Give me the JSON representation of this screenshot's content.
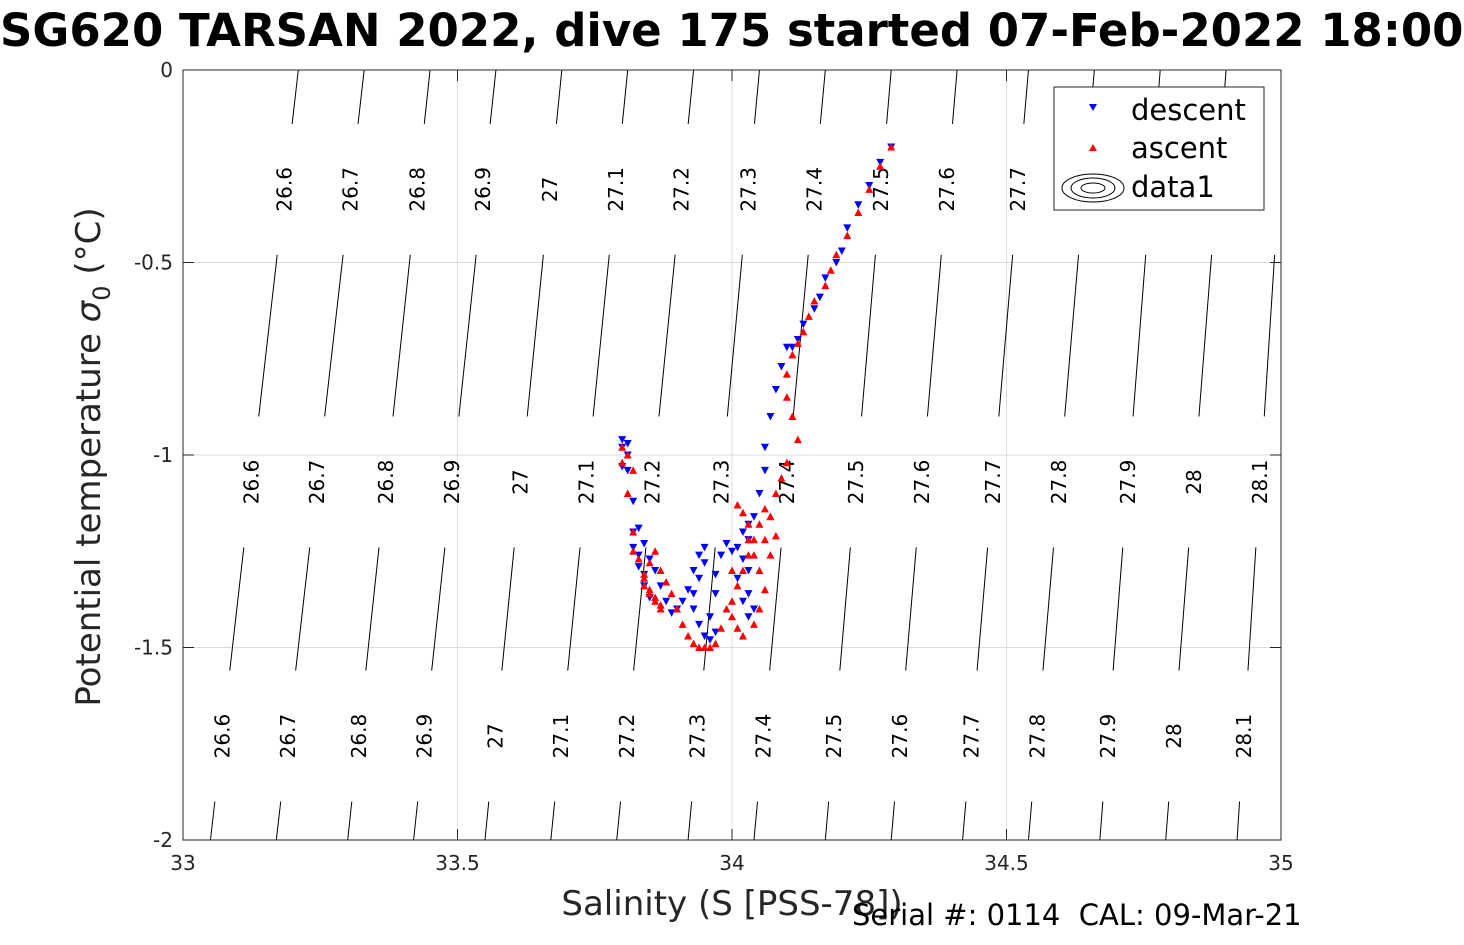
{
  "chart_data": {
    "type": "scatter",
    "title": "SG620 TARSAN 2022, dive 175 started 07-Feb-2022 18:00",
    "xlabel": "Salinity (S [PSS-78])",
    "ylabel": "Potential temperature",
    "ylabel_symbol": "σ",
    "ylabel_subscript": "0",
    "ylabel_unit": "(°C)",
    "xlim": [
      33,
      35
    ],
    "ylim": [
      -2,
      0
    ],
    "xticks": [
      "33",
      "33.5",
      "34",
      "34.5",
      "35"
    ],
    "yticks": [
      "0",
      "-0.5",
      "-1",
      "-1.5",
      "-2"
    ],
    "grid": true,
    "legend_position": "top-right",
    "legend": [
      {
        "label": "descent",
        "marker": "down-triangle",
        "color": "#0000ff"
      },
      {
        "label": "ascent",
        "marker": "up-triangle",
        "color": "#ff0000"
      },
      {
        "label": "data1",
        "marker": "contour",
        "color": "#000000"
      }
    ],
    "isopycnals": {
      "labels": [
        "26.6",
        "26.7",
        "26.8",
        "26.9",
        "27",
        "27.1",
        "27.2",
        "27.3",
        "27.4",
        "27.5",
        "27.6",
        "27.7",
        "27.8",
        "27.9",
        "28",
        "28.1"
      ],
      "s_at_minus2": [
        33.05,
        33.17,
        33.3,
        33.42,
        33.55,
        33.67,
        33.79,
        33.92,
        34.04,
        34.17,
        34.29,
        34.42,
        34.54,
        34.67,
        34.79,
        34.92
      ],
      "s_at_0": [
        33.21,
        33.33,
        33.45,
        33.57,
        33.69,
        33.81,
        33.93,
        34.05,
        34.17,
        34.29,
        34.41,
        34.54,
        34.66,
        34.78,
        34.9,
        35.01
      ],
      "label_row_y": [
        -0.31,
        -1.07,
        -1.73
      ]
    },
    "series": [
      {
        "name": "descent",
        "color": "#0000ff",
        "marker": "down-triangle",
        "x": [
          34.29,
          34.27,
          34.25,
          34.23,
          34.21,
          34.2,
          34.19,
          34.17,
          34.16,
          34.15,
          34.13,
          34.12,
          34.11,
          34.1,
          34.09,
          34.08,
          34.07,
          34.06,
          34.06,
          34.05,
          34.04,
          34.03,
          34.03,
          34.03,
          34.04,
          34.03,
          34.02,
          34.01,
          34.02,
          34.03,
          34.03,
          34.02,
          34.01,
          34.0,
          33.99,
          33.98,
          33.97,
          33.97,
          33.96,
          33.97,
          33.96,
          33.95,
          33.94,
          33.93,
          33.93,
          33.94,
          33.95,
          33.95,
          33.94,
          33.93,
          33.92,
          33.91,
          33.9,
          33.89,
          33.88,
          33.87,
          33.86,
          33.85,
          33.84,
          33.83,
          33.82,
          33.82,
          33.83,
          33.84,
          33.85,
          33.84,
          33.83,
          33.82,
          33.81,
          33.8,
          33.8,
          33.81,
          33.81,
          33.8
        ],
        "y": [
          -0.2,
          -0.24,
          -0.3,
          -0.35,
          -0.41,
          -0.47,
          -0.5,
          -0.54,
          -0.59,
          -0.62,
          -0.66,
          -0.7,
          -0.72,
          -0.72,
          -0.77,
          -0.83,
          -0.9,
          -0.98,
          -1.04,
          -1.1,
          -1.16,
          -1.22,
          -1.3,
          -1.36,
          -1.4,
          -1.42,
          -1.38,
          -1.32,
          -1.27,
          -1.22,
          -1.18,
          -1.2,
          -1.24,
          -1.25,
          -1.23,
          -1.26,
          -1.31,
          -1.36,
          -1.42,
          -1.46,
          -1.48,
          -1.47,
          -1.44,
          -1.4,
          -1.36,
          -1.32,
          -1.28,
          -1.24,
          -1.26,
          -1.3,
          -1.35,
          -1.38,
          -1.4,
          -1.41,
          -1.38,
          -1.34,
          -1.3,
          -1.27,
          -1.23,
          -1.19,
          -1.2,
          -1.24,
          -1.29,
          -1.34,
          -1.37,
          -1.31,
          -1.26,
          -1.12,
          -1.04,
          -0.98,
          -0.96,
          -0.97,
          -1.0,
          -1.03
        ]
      },
      {
        "name": "ascent",
        "color": "#ff0000",
        "marker": "up-triangle",
        "x": [
          34.29,
          34.27,
          34.25,
          34.23,
          34.21,
          34.19,
          34.18,
          34.17,
          34.15,
          34.14,
          34.13,
          34.12,
          34.11,
          34.1,
          34.1,
          34.11,
          34.12,
          34.1,
          34.09,
          34.08,
          34.07,
          34.06,
          34.07,
          34.08,
          34.07,
          34.06,
          34.05,
          34.04,
          34.03,
          34.02,
          34.01,
          34.0,
          34.0,
          34.01,
          34.02,
          34.04,
          34.05,
          34.06,
          34.05,
          34.04,
          34.03,
          34.03,
          34.02,
          34.01,
          34.0,
          33.99,
          33.98,
          33.97,
          33.96,
          33.95,
          33.94,
          33.93,
          33.92,
          33.91,
          33.9,
          33.89,
          33.88,
          33.87,
          33.86,
          33.85,
          33.84,
          33.84,
          33.85,
          33.86,
          33.87,
          33.87,
          33.86,
          33.85,
          33.84,
          33.83,
          33.82,
          33.82,
          33.81,
          33.8,
          33.8,
          33.81,
          33.82
        ],
        "y": [
          -0.2,
          -0.25,
          -0.31,
          -0.37,
          -0.43,
          -0.48,
          -0.52,
          -0.56,
          -0.6,
          -0.64,
          -0.68,
          -0.71,
          -0.74,
          -0.79,
          -0.85,
          -0.9,
          -0.96,
          -1.02,
          -1.06,
          -1.1,
          -1.16,
          -1.22,
          -1.26,
          -1.21,
          -1.16,
          -1.14,
          -1.18,
          -1.22,
          -1.26,
          -1.3,
          -1.34,
          -1.38,
          -1.42,
          -1.45,
          -1.47,
          -1.44,
          -1.4,
          -1.35,
          -1.3,
          -1.26,
          -1.22,
          -1.18,
          -1.15,
          -1.13,
          -1.3,
          -1.4,
          -1.45,
          -1.49,
          -1.5,
          -1.5,
          -1.5,
          -1.49,
          -1.47,
          -1.44,
          -1.4,
          -1.36,
          -1.33,
          -1.3,
          -1.25,
          -1.28,
          -1.32,
          -1.34,
          -1.36,
          -1.38,
          -1.4,
          -1.39,
          -1.37,
          -1.35,
          -1.31,
          -1.27,
          -1.25,
          -1.2,
          -1.1,
          -1.02,
          -0.98,
          -1.0,
          -1.04
        ]
      }
    ]
  },
  "footer": "Serial #: 0114  CAL: 09-Mar-21"
}
